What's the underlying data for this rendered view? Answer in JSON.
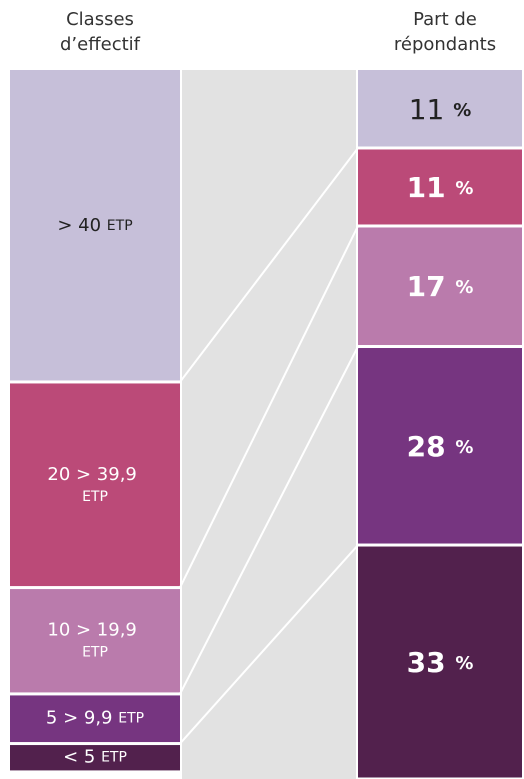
{
  "chart_data": {
    "type": "alluvial",
    "left_title": [
      "Classes",
      "d’effectif"
    ],
    "right_title": [
      "Part de",
      "répondants"
    ],
    "categories": [
      "> 40 ETP",
      "20 > 39,9 ETP",
      "10 > 19,9 ETP",
      "5 > 9,9 ETP",
      "< 5 ETP"
    ],
    "left_values": [
      44,
      29,
      15,
      7,
      4
    ],
    "values": [
      11,
      11,
      17,
      28,
      33
    ],
    "value_labels": [
      "11 %",
      "11 %",
      "17 %",
      "28 %",
      "33 %"
    ],
    "colors": [
      "#c6bfd9",
      "#bb4a78",
      "#ba7bac",
      "#763580",
      "#52214d"
    ],
    "ylim": [
      0,
      100
    ]
  }
}
